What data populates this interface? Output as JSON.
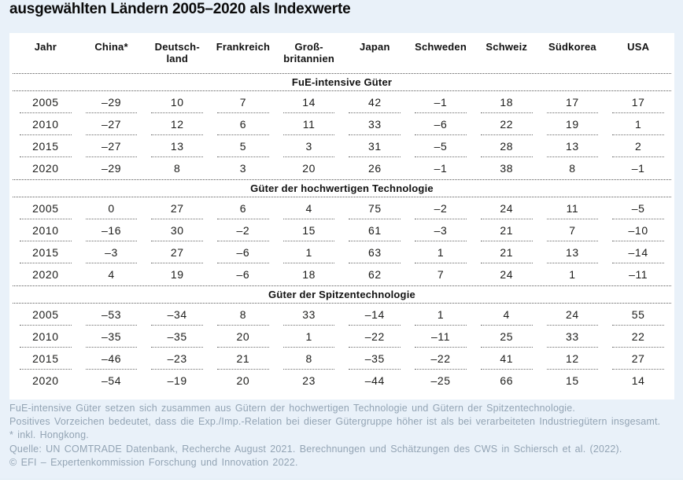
{
  "chart_data": {
    "type": "table",
    "title": "ausgewählten Ländern 2005–2020 als Indexwerte",
    "columns": [
      "Jahr",
      "China*",
      "Deutsch-\nland",
      "Frankreich",
      "Groß-\nbritannien",
      "Japan",
      "Schweden",
      "Schweiz",
      "Südkorea",
      "USA"
    ],
    "sections": [
      {
        "label": "FuE-intensive Güter",
        "rows": [
          {
            "year": "2005",
            "values": [
              -29,
              10,
              7,
              14,
              42,
              -1,
              18,
              17,
              17
            ]
          },
          {
            "year": "2010",
            "values": [
              -27,
              12,
              6,
              11,
              33,
              -6,
              22,
              19,
              1
            ]
          },
          {
            "year": "2015",
            "values": [
              -27,
              13,
              5,
              3,
              31,
              -5,
              28,
              13,
              2
            ]
          },
          {
            "year": "2020",
            "values": [
              -29,
              8,
              3,
              20,
              26,
              -1,
              38,
              8,
              -1
            ]
          }
        ]
      },
      {
        "label": "Güter der hochwertigen Technologie",
        "rows": [
          {
            "year": "2005",
            "values": [
              0,
              27,
              6,
              4,
              75,
              -2,
              24,
              11,
              -5
            ]
          },
          {
            "year": "2010",
            "values": [
              -16,
              30,
              -2,
              15,
              61,
              -3,
              21,
              7,
              -10
            ]
          },
          {
            "year": "2015",
            "values": [
              -3,
              27,
              -6,
              1,
              63,
              1,
              21,
              13,
              -14
            ]
          },
          {
            "year": "2020",
            "values": [
              4,
              19,
              -6,
              18,
              62,
              7,
              24,
              1,
              -11
            ]
          }
        ]
      },
      {
        "label": "Güter der Spitzentechnologie",
        "rows": [
          {
            "year": "2005",
            "values": [
              -53,
              -34,
              8,
              33,
              -14,
              1,
              4,
              24,
              55
            ]
          },
          {
            "year": "2010",
            "values": [
              -35,
              -35,
              20,
              1,
              -22,
              -11,
              25,
              33,
              22
            ]
          },
          {
            "year": "2015",
            "values": [
              -46,
              -23,
              21,
              8,
              -35,
              -22,
              41,
              12,
              27
            ]
          },
          {
            "year": "2020",
            "values": [
              -54,
              -19,
              20,
              23,
              -44,
              -25,
              66,
              15,
              14
            ]
          }
        ]
      }
    ]
  },
  "footnotes": [
    "FuE-intensive Güter setzen sich zusammen aus Gütern der hochwertigen Technologie und Gütern der Spitzentechnologie.",
    "Positives Vorzeichen bedeutet, dass die Exp./Imp.-Relation bei dieser Gütergruppe höher ist als bei verarbeiteten Industriegütern insgesamt.",
    "* inkl. Hongkong.",
    "Quelle: UN COMTRADE Datenbank, Recherche August 2021. Berechnungen und Schätzungen des CWS in Schiersch et al. (2022).",
    "© EFI – Expertenkommission Forschung und Innovation 2022."
  ],
  "colors": {
    "card_background": "#e9f1f9",
    "panel_background": "#ffffff",
    "table_text": "#1d1d1b",
    "footnote_text": "#93a4b4",
    "dotted_line": "#5a5a5a"
  }
}
